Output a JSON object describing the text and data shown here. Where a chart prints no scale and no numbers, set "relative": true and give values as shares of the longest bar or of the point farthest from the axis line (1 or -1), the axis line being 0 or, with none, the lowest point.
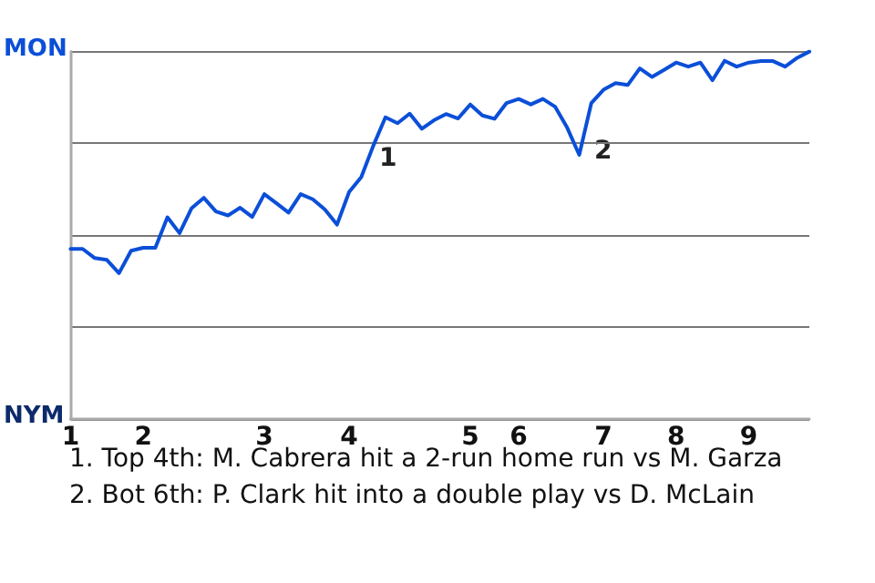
{
  "chart_data": {
    "type": "line",
    "relative": true,
    "grid": "y",
    "marker": "none",
    "line_style": "solid",
    "categories": [
      "1",
      null,
      null,
      null,
      null,
      null,
      "2",
      null,
      null,
      null,
      null,
      null,
      null,
      null,
      null,
      null,
      "3",
      null,
      null,
      null,
      null,
      null,
      null,
      "4",
      null,
      null,
      null,
      null,
      null,
      null,
      null,
      null,
      null,
      "5",
      null,
      null,
      null,
      "6",
      null,
      null,
      null,
      null,
      null,
      null,
      "7",
      null,
      null,
      null,
      null,
      null,
      "8",
      null,
      null,
      null,
      null,
      null,
      "9",
      null,
      null,
      null,
      null,
      null
    ],
    "series": [
      {
        "color": "#0b4fd8",
        "values": [
          0.463,
          0.463,
          0.438,
          0.433,
          0.397,
          0.458,
          0.466,
          0.466,
          0.549,
          0.506,
          0.574,
          0.602,
          0.565,
          0.554,
          0.575,
          0.55,
          0.612,
          0.587,
          0.562,
          0.612,
          0.598,
          0.57,
          0.529,
          0.618,
          0.658,
          0.744,
          0.821,
          0.805,
          0.831,
          0.79,
          0.813,
          0.83,
          0.818,
          0.856,
          0.826,
          0.817,
          0.86,
          0.871,
          0.856,
          0.871,
          0.85,
          0.793,
          0.719,
          0.86,
          0.896,
          0.914,
          0.909,
          0.954,
          0.931,
          0.95,
          0.97,
          0.959,
          0.97,
          0.922,
          0.975,
          0.959,
          0.97,
          0.974,
          0.974,
          0.959,
          0.983,
          1.0
        ]
      }
    ],
    "annotations": [
      "MON",
      "NYM",
      "1",
      "2",
      "1. Top 4th: M. Cabrera hit a 2-run home run vs M. Garza",
      "2. Bot 6th: P. Clark hit into a double play vs D. McLain"
    ]
  }
}
